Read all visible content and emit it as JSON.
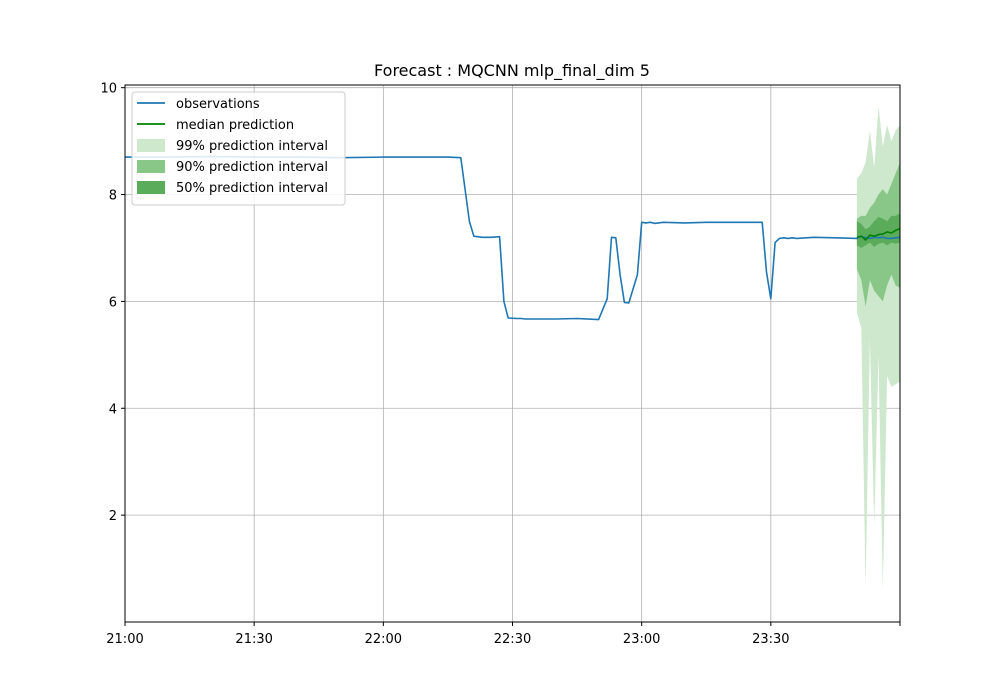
{
  "chart_data": {
    "type": "line",
    "title": "Forecast : MQCNN mlp_final_dim 5",
    "xlabel": "",
    "ylabel": "",
    "x_axis": {
      "min_minutes": 0,
      "max_minutes": 180,
      "ticks": [
        {
          "label": "21:00",
          "t": 0
        },
        {
          "label": "21:30",
          "t": 30
        },
        {
          "label": "22:00",
          "t": 60
        },
        {
          "label": "22:30",
          "t": 90
        },
        {
          "label": "23:00",
          "t": 120
        },
        {
          "label": "23:30",
          "t": 150
        },
        {
          "label": "",
          "t": 180
        }
      ]
    },
    "ylim": [
      0.0,
      10.05
    ],
    "y_ticks": [
      2,
      4,
      6,
      8,
      10
    ],
    "grid": true,
    "legend_position": "top-left",
    "colors": {
      "observations": "#1f77b4",
      "median": "#008000",
      "pi99": "#cde8cd",
      "pi90": "#88c788",
      "pi50": "#5aab5a"
    },
    "legend": [
      {
        "key": "observations",
        "label": "observations",
        "kind": "line"
      },
      {
        "key": "median",
        "label": "median prediction",
        "kind": "line"
      },
      {
        "key": "pi99",
        "label": "99% prediction interval",
        "kind": "patch"
      },
      {
        "key": "pi90",
        "label": "90% prediction interval",
        "kind": "patch"
      },
      {
        "key": "pi50",
        "label": "50% prediction interval",
        "kind": "patch"
      }
    ],
    "observations": {
      "x": [
        0,
        10,
        20,
        30,
        40,
        50,
        60,
        70,
        75,
        78,
        80,
        81,
        83,
        85,
        87,
        88,
        89,
        91,
        92,
        93,
        95,
        100,
        105,
        110,
        112,
        113,
        114,
        115,
        116,
        117,
        119,
        120,
        121,
        122,
        123,
        125,
        130,
        135,
        140,
        145,
        148,
        149,
        150,
        151,
        152,
        153,
        154,
        155,
        156,
        160,
        165,
        170,
        171,
        172,
        173,
        174,
        175,
        176,
        177,
        178,
        179,
        180
      ],
      "y": [
        8.7,
        8.7,
        8.71,
        8.7,
        8.7,
        8.69,
        8.7,
        8.7,
        8.7,
        8.69,
        7.5,
        7.22,
        7.2,
        7.2,
        7.21,
        6.0,
        5.69,
        5.68,
        5.68,
        5.67,
        5.67,
        5.67,
        5.68,
        5.66,
        6.05,
        7.2,
        7.19,
        6.5,
        5.98,
        5.97,
        6.5,
        7.48,
        7.47,
        7.48,
        7.46,
        7.48,
        7.47,
        7.48,
        7.48,
        7.48,
        7.48,
        6.55,
        6.05,
        7.1,
        7.18,
        7.19,
        7.18,
        7.19,
        7.18,
        7.2,
        7.19,
        7.18,
        7.22,
        7.19,
        7.18,
        7.2,
        7.19,
        7.2,
        7.18,
        7.18,
        7.19,
        7.2
      ]
    },
    "forecast": {
      "x": [
        170,
        171,
        172,
        173,
        174,
        175,
        176,
        177,
        178,
        179,
        180
      ],
      "median": [
        7.2,
        7.22,
        7.15,
        7.24,
        7.22,
        7.25,
        7.26,
        7.3,
        7.28,
        7.33,
        7.36
      ],
      "pi50_low": [
        7.05,
        7.0,
        7.05,
        7.1,
        7.02,
        7.08,
        7.1,
        7.05,
        7.1,
        7.08,
        7.1
      ],
      "pi50_high": [
        7.5,
        7.45,
        7.35,
        7.4,
        7.5,
        7.58,
        7.55,
        7.5,
        7.6,
        7.6,
        7.65
      ],
      "pi90_low": [
        6.6,
        6.4,
        5.9,
        6.4,
        6.2,
        6.1,
        6.0,
        6.3,
        6.5,
        6.3,
        6.25
      ],
      "pi90_high": [
        7.55,
        7.6,
        7.6,
        7.75,
        7.85,
        8.0,
        8.1,
        8.0,
        8.2,
        8.4,
        8.6
      ],
      "pi99_low": [
        5.8,
        5.5,
        0.65,
        5.3,
        1.8,
        5.0,
        0.6,
        4.6,
        4.4,
        4.45,
        4.5
      ],
      "pi99_high": [
        8.3,
        8.4,
        8.6,
        9.2,
        8.5,
        9.65,
        8.9,
        9.3,
        9.0,
        9.2,
        9.3
      ]
    }
  }
}
